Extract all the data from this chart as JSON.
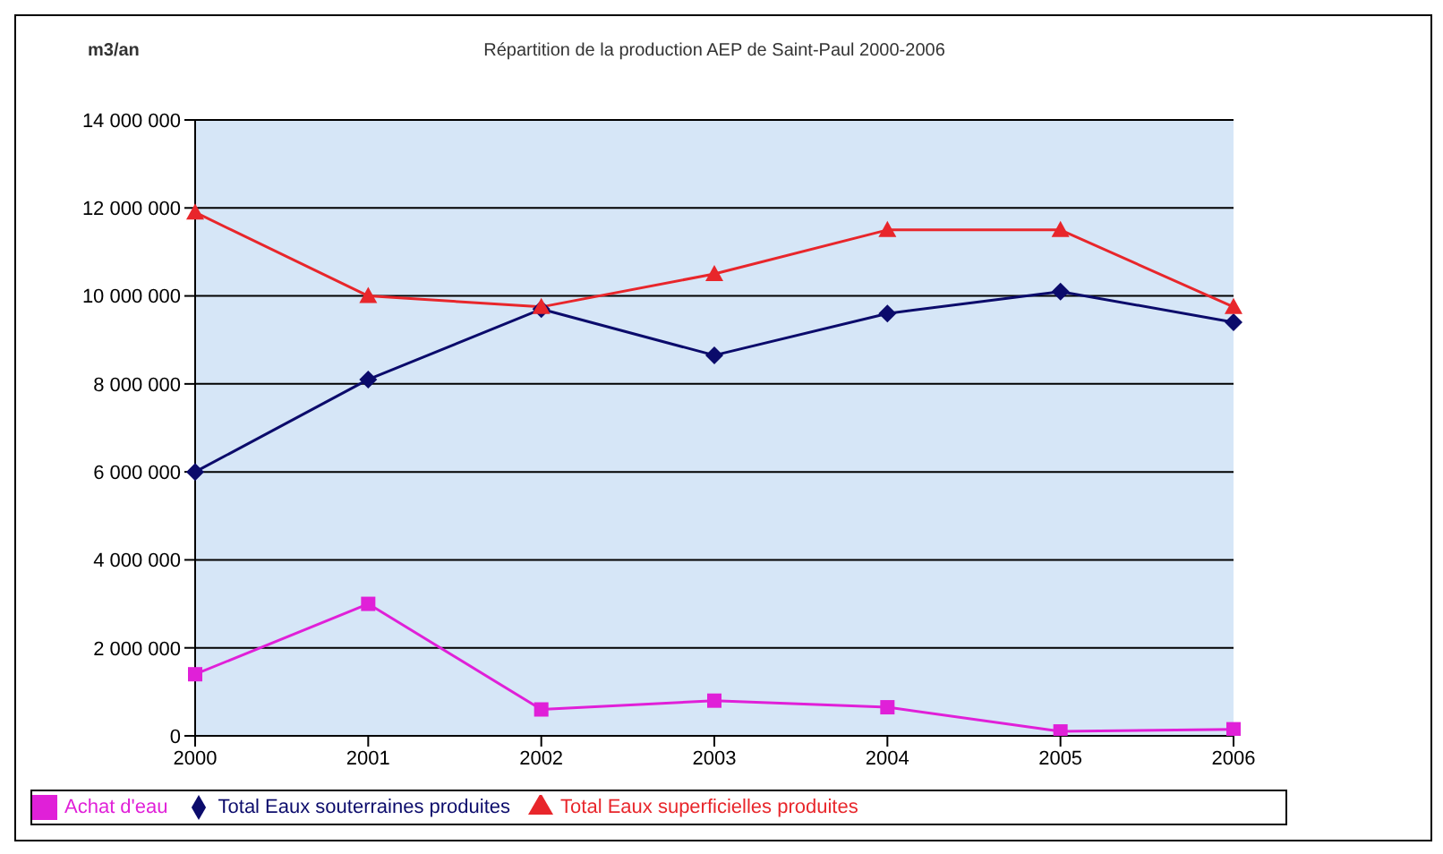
{
  "chart_data": {
    "type": "line",
    "title": "Répartition de la production AEP de Saint-Paul 2000-2006",
    "ylabel": "m3/an",
    "categories": [
      "2000",
      "2001",
      "2002",
      "2003",
      "2004",
      "2005",
      "2006"
    ],
    "series": [
      {
        "name": "Total Eaux superficielles produites",
        "color": "#e8262b",
        "marker": "triangle",
        "values": [
          11900000,
          10000000,
          9750000,
          10500000,
          11500000,
          11500000,
          9750000
        ]
      },
      {
        "name": "Total Eaux souterraines produites",
        "color": "#0b0b6b",
        "marker": "diamond",
        "values": [
          6000000,
          8100000,
          9700000,
          8650000,
          9600000,
          10100000,
          9400000
        ]
      },
      {
        "name": "Achat d'eau",
        "color": "#e020d8",
        "marker": "square",
        "values": [
          1400000,
          3000000,
          600000,
          800000,
          650000,
          100000,
          150000
        ]
      }
    ],
    "ylim": [
      0,
      14000000
    ],
    "yticks": [
      {
        "value": 0,
        "label": "0"
      },
      {
        "value": 2000000,
        "label": "2 000 000"
      },
      {
        "value": 4000000,
        "label": "4 000 000"
      },
      {
        "value": 6000000,
        "label": "6 000 000"
      },
      {
        "value": 8000000,
        "label": "8 000 000"
      },
      {
        "value": 10000000,
        "label": "10 000 000"
      },
      {
        "value": 12000000,
        "label": "12 000 000"
      },
      {
        "value": 14000000,
        "label": "14 000 000"
      }
    ],
    "grid": "y",
    "legend": "bottom"
  }
}
